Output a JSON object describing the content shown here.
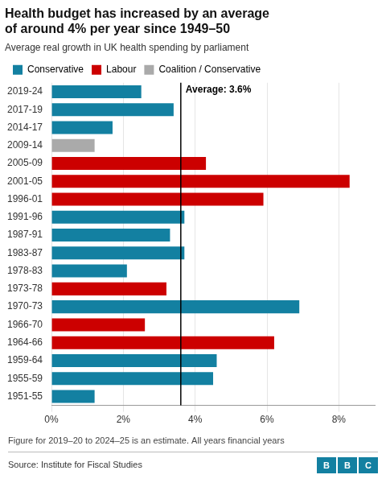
{
  "chart_data": {
    "type": "bar",
    "orientation": "horizontal",
    "title": "Health budget has increased by an average\nof around 4% per year since 1949–50",
    "subtitle": "Average real growth in UK health spending by parliament",
    "categories": [
      "2019-24",
      "2017-19",
      "2014-17",
      "2009-14",
      "2005-09",
      "2001-05",
      "1996-01",
      "1991-96",
      "1987-91",
      "1983-87",
      "1978-83",
      "1973-78",
      "1970-73",
      "1966-70",
      "1964-66",
      "1959-64",
      "1955-59",
      "1951-55"
    ],
    "values": [
      2.5,
      3.4,
      1.7,
      1.2,
      4.3,
      8.3,
      5.9,
      3.7,
      3.3,
      3.7,
      2.1,
      3.2,
      6.9,
      2.6,
      6.2,
      4.6,
      4.5,
      1.2
    ],
    "colors": [
      "#1380A1",
      "#1380A1",
      "#1380A1",
      "#AAAAAA",
      "#CC0000",
      "#CC0000",
      "#CC0000",
      "#1380A1",
      "#1380A1",
      "#1380A1",
      "#1380A1",
      "#CC0000",
      "#1380A1",
      "#CC0000",
      "#CC0000",
      "#1380A1",
      "#1380A1",
      "#1380A1"
    ],
    "legend_items": [
      {
        "name": "Conservative",
        "color": "#1380A1"
      },
      {
        "name": "Labour",
        "color": "#CC0000"
      },
      {
        "name": "Coalition / Conservative",
        "color": "#AAAAAA"
      }
    ],
    "legend": "top",
    "average": {
      "value": 3.6,
      "label": "Average: 3.6%"
    },
    "xlim": [
      0,
      9
    ],
    "xticks": [
      {
        "value": 0,
        "label": "0%"
      },
      {
        "value": 2,
        "label": "2%"
      },
      {
        "value": 4,
        "label": "4%"
      },
      {
        "value": 6,
        "label": "6%"
      },
      {
        "value": 8,
        "label": "8%"
      }
    ],
    "grid": true,
    "footnotes": [
      "Figure for 2019–20 to 2024–25 is an estimate. All years financial years",
      "Source: Institute for Fiscal Studies"
    ],
    "logo": "BBC"
  }
}
